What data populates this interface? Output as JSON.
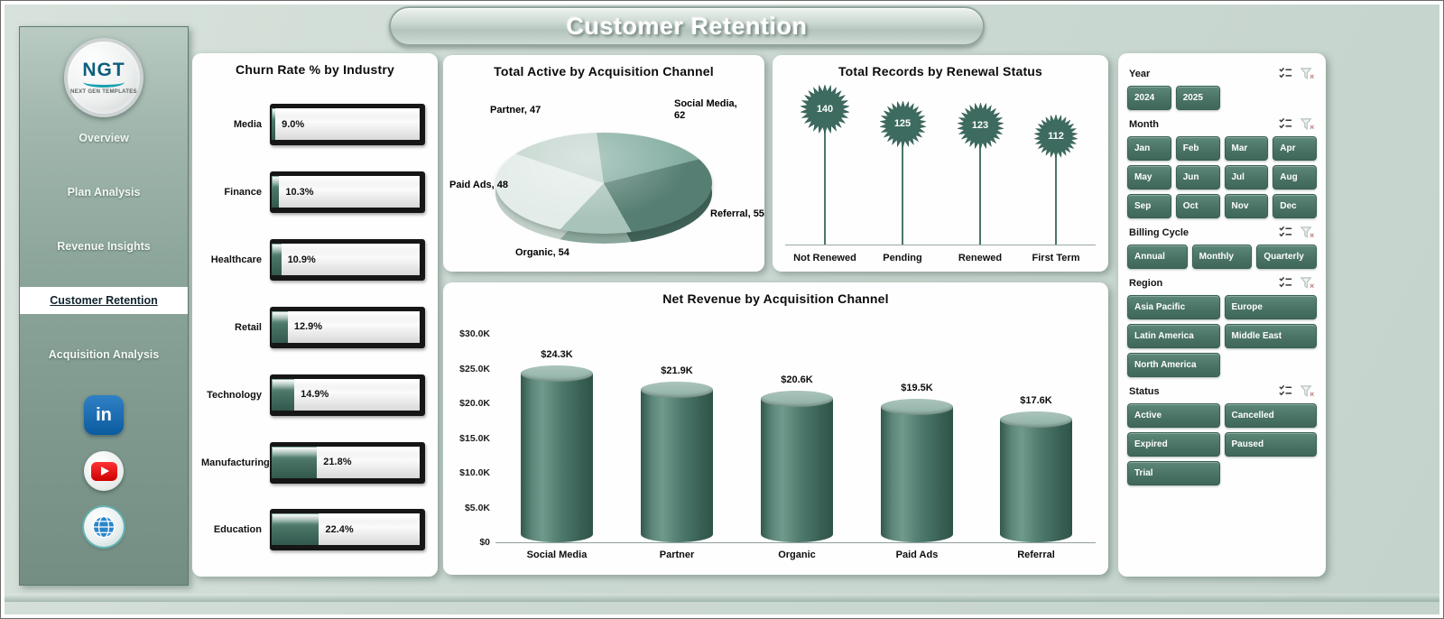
{
  "page_title": "Customer Retention",
  "sidebar": {
    "logo": {
      "text": "NGT",
      "subtext": "NEXT GEN TEMPLATES"
    },
    "nav": [
      {
        "label": "Overview",
        "active": false
      },
      {
        "label": "Plan Analysis",
        "active": false
      },
      {
        "label": "Revenue Insights",
        "active": false
      },
      {
        "label": "Customer Retention",
        "active": true
      },
      {
        "label": "Acquisition Analysis",
        "active": false
      }
    ],
    "social_icons": [
      "linkedin-icon",
      "youtube-icon",
      "globe-icon"
    ]
  },
  "chart_data": [
    {
      "type": "bar",
      "orientation": "horizontal",
      "title": "Churn Rate % by Industry",
      "categories": [
        "Media",
        "Finance",
        "Healthcare",
        "Retail",
        "Technology",
        "Manufacturing",
        "Education"
      ],
      "values": [
        9.0,
        10.3,
        10.9,
        12.9,
        14.9,
        21.8,
        22.4
      ],
      "labels": [
        "9.0%",
        "10.3%",
        "10.9%",
        "12.9%",
        "14.9%",
        "21.8%",
        "22.4%"
      ]
    },
    {
      "type": "pie",
      "title": "Total Active by Acquisition Channel",
      "categories": [
        "Social Media",
        "Referral",
        "Organic",
        "Paid Ads",
        "Partner"
      ],
      "values": [
        62,
        55,
        54,
        48,
        47
      ],
      "labels": [
        "Social Media, 62",
        "Referral, 55",
        "Organic, 54",
        "Paid Ads, 48",
        "Partner, 47"
      ]
    },
    {
      "type": "lollipop",
      "title": "Total Records by Renewal Status",
      "categories": [
        "Not Renewed",
        "Pending",
        "Renewed",
        "First Term"
      ],
      "values": [
        140,
        125,
        123,
        112
      ]
    },
    {
      "type": "bar",
      "orientation": "vertical",
      "title": "Net Revenue by Acquisition Channel",
      "categories": [
        "Social Media",
        "Partner",
        "Organic",
        "Paid Ads",
        "Referral"
      ],
      "values": [
        24.3,
        21.9,
        20.6,
        19.5,
        17.6
      ],
      "labels": [
        "$24.3K",
        "$21.9K",
        "$20.6K",
        "$19.5K",
        "$17.6K"
      ],
      "ylabel_ticks": [
        "$30.0K",
        "$25.0K",
        "$20.0K",
        "$15.0K",
        "$10.0K",
        "$5.0K",
        "$0"
      ],
      "ylim": [
        0,
        30
      ]
    }
  ],
  "slicers": [
    {
      "label": "Year",
      "columns": 4,
      "options": [
        "2024",
        "2025"
      ]
    },
    {
      "label": "Month",
      "columns": 4,
      "options": [
        "Jan",
        "Feb",
        "Mar",
        "Apr",
        "May",
        "Jun",
        "Jul",
        "Aug",
        "Sep",
        "Oct",
        "Nov",
        "Dec"
      ]
    },
    {
      "label": "Billing Cycle",
      "columns": 3,
      "options": [
        "Annual",
        "Monthly",
        "Quarterly"
      ]
    },
    {
      "label": "Region",
      "columns": 2,
      "options": [
        "Asia Pacific",
        "Europe",
        "Latin America",
        "Middle East",
        "North America"
      ]
    },
    {
      "label": "Status",
      "columns": 2,
      "options": [
        "Active",
        "Cancelled",
        "Expired",
        "Paused",
        "Trial"
      ]
    }
  ],
  "colors": {
    "accent_dark": "#3d6b60",
    "button": "#4a7365",
    "background": "#cbd9d2",
    "pie": [
      "#84ada1",
      "#567e72",
      "#a8c3ba",
      "#e3ece8",
      "#c4d5ce"
    ],
    "pie_rim": [
      "#6a9387",
      "#3f6157",
      "#8aa69b",
      "#c0cfc8",
      "#a2b4ad"
    ]
  }
}
